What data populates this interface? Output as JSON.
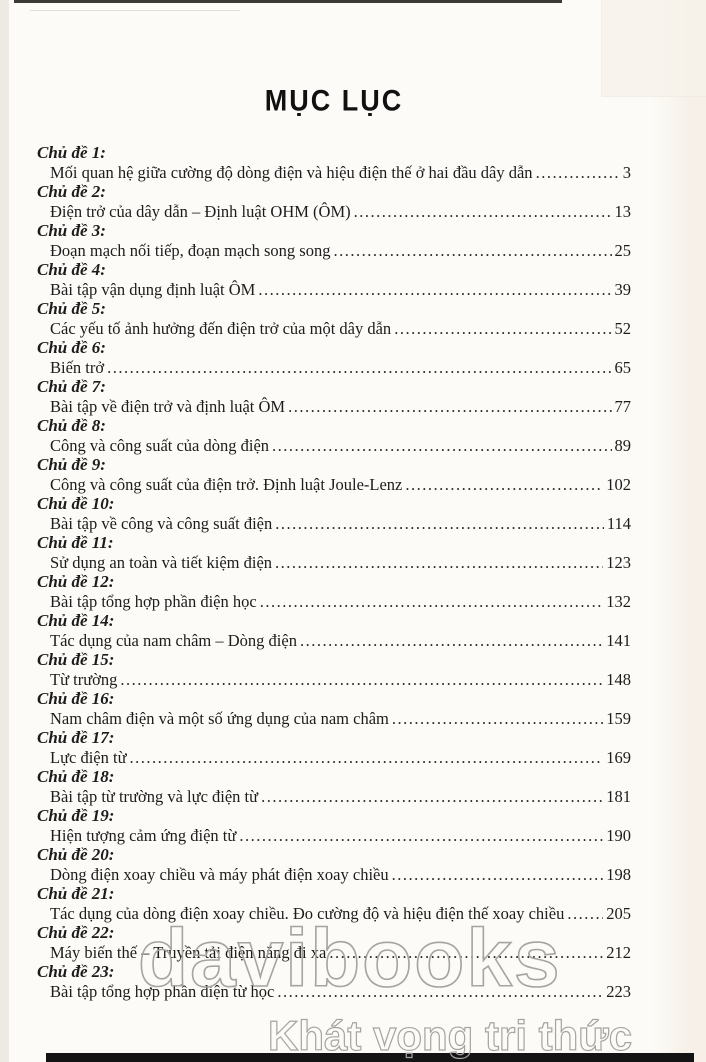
{
  "page": {
    "title": "MỤC LỤC"
  },
  "watermark": {
    "line1": "davibooks",
    "line2": "Khát vọng tri thức"
  },
  "colors": {
    "ink": "#1c1c1c",
    "page_background": "#fcfbf7",
    "watermark_outline": "#a6a4a1",
    "bottom_bar": "#141414"
  },
  "toc": [
    {
      "label": "Chủ đề 1:",
      "text": "Mối quan hệ giữa cường độ dòng điện và hiệu điện thế ở hai đầu dây dẫn",
      "page": "3"
    },
    {
      "label": "Chủ đề 2:",
      "text": "Điện trở của dây dẫn – Định luật OHM (ÔM)",
      "page": "13"
    },
    {
      "label": "Chủ đề 3:",
      "text": "Đoạn mạch nối tiếp, đoạn mạch song song",
      "page": "25"
    },
    {
      "label": "Chủ đề 4:",
      "text": "Bài tập vận dụng định luật ÔM",
      "page": "39"
    },
    {
      "label": "Chủ đề 5:",
      "text": "Các yếu tố ảnh hưởng đến điện trở của một dây dẫn",
      "page": "52"
    },
    {
      "label": "Chủ đề 6:",
      "text": "Biến trở",
      "page": "65"
    },
    {
      "label": "Chủ đề 7:",
      "text": "Bài tập về điện trở và định luật ÔM",
      "page": "77"
    },
    {
      "label": "Chủ đề 8:",
      "text": "Công và công suất của dòng điện",
      "page": "89"
    },
    {
      "label": "Chủ đề 9:",
      "text": "Công và công suất của điện trở. Định luật Joule-Lenz",
      "page": "102"
    },
    {
      "label": "Chủ đề 10:",
      "text": "Bài tập về công và công suất điện",
      "page": "114"
    },
    {
      "label": "Chủ đề 11:",
      "text": "Sử dụng an toàn và tiết kiệm điện",
      "page": "123"
    },
    {
      "label": "Chủ đề 12:",
      "text": "Bài tập tổng hợp phần điện học",
      "page": "132"
    },
    {
      "label": "Chủ đề 14:",
      "text": "Tác dụng của nam châm – Dòng điện",
      "page": "141"
    },
    {
      "label": "Chủ đề 15:",
      "text": "Từ trường",
      "page": "148"
    },
    {
      "label": "Chủ đề 16:",
      "text": "Nam châm điện và một số ứng dụng của nam châm",
      "page": "159"
    },
    {
      "label": "Chủ đề 17:",
      "text": "Lực điện từ",
      "page": "169"
    },
    {
      "label": "Chủ đề 18:",
      "text": "Bài tập từ trường và lực điện từ",
      "page": "181"
    },
    {
      "label": "Chủ đề 19:",
      "text": "Hiện tượng cảm ứng điện từ",
      "page": "190"
    },
    {
      "label": "Chủ đề 20:",
      "text": "Dòng điện xoay chiều và máy phát điện xoay chiều",
      "page": "198"
    },
    {
      "label": "Chủ đề 21:",
      "text": "Tác dụng của dòng điện xoay chiều. Đo cường độ và hiệu điện thế xoay chiều",
      "page": "205"
    },
    {
      "label": "Chủ đề 22:",
      "text": "Máy biến thế – Truyền tải điện năng đi xa",
      "page": "212"
    },
    {
      "label": "Chủ đề 23:",
      "text": "Bài tập tổng hợp phần điện từ học",
      "page": "223"
    }
  ]
}
